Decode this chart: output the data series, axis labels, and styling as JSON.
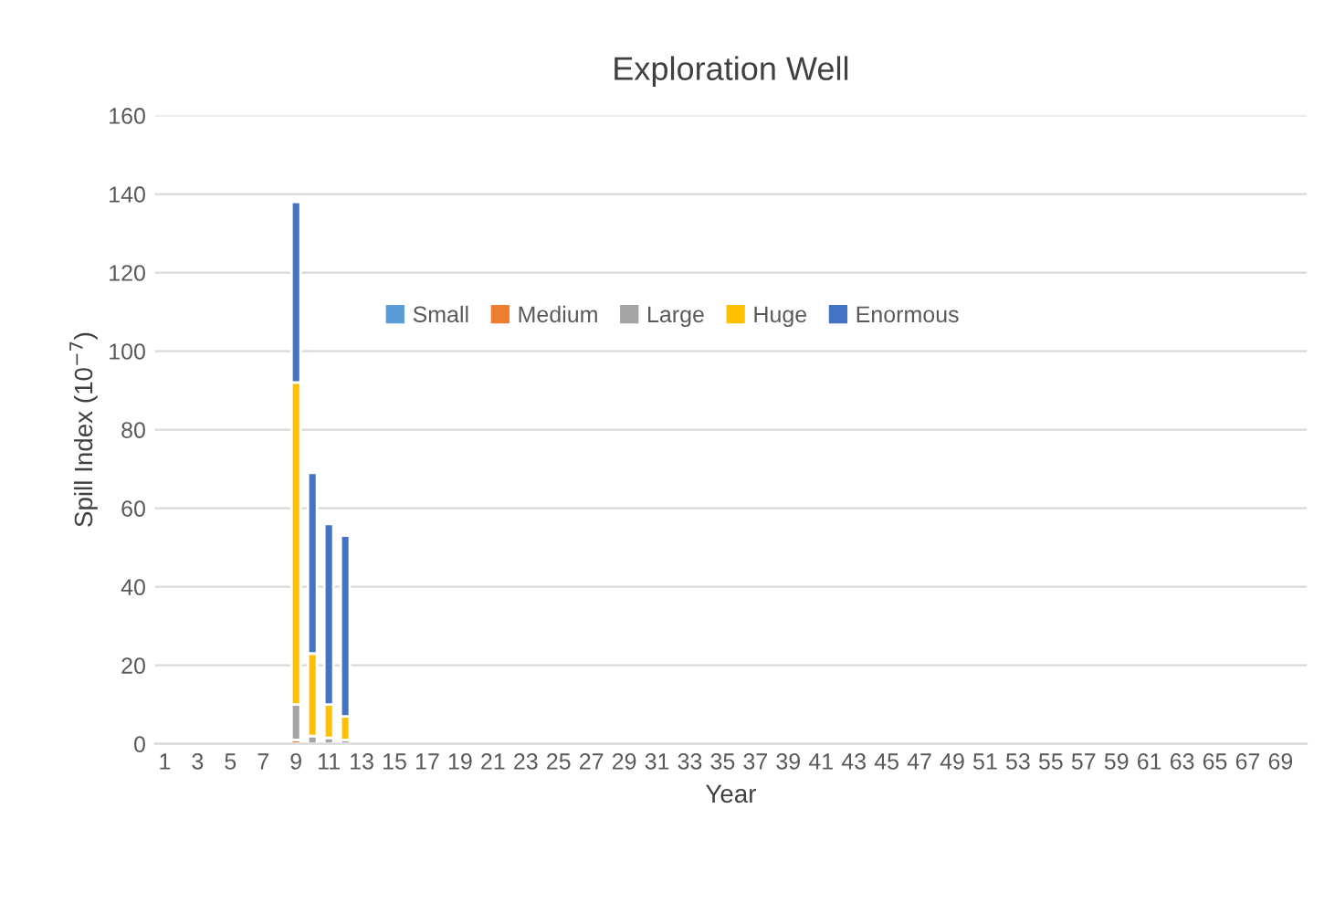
{
  "chart_data": {
    "type": "bar",
    "stacked": true,
    "title": "Exploration Well",
    "xlabel": "Year",
    "ylabel": "Spill Index (10$^{−7}$)",
    "categories": [
      "1",
      null,
      "3",
      null,
      "5",
      null,
      "7",
      null,
      "9",
      null,
      "11",
      null,
      "13",
      null,
      "15",
      null,
      "17",
      null,
      "19",
      null,
      "21",
      null,
      "23",
      null,
      "25",
      null,
      "27",
      null,
      "29",
      null,
      "31",
      null,
      "33",
      null,
      "35",
      null,
      "37",
      null,
      "39",
      null,
      "41",
      null,
      "43",
      null,
      "45",
      null,
      "47",
      null,
      "49",
      null,
      "51",
      null,
      "53",
      null,
      "55",
      null,
      "57",
      null,
      "59",
      null,
      "61",
      null,
      "63",
      null,
      "65",
      null,
      "67",
      null,
      "69",
      null
    ],
    "series": [
      {
        "name": "Small",
        "color": "#5b9bd5",
        "values": [
          null,
          null,
          null,
          null,
          null,
          null,
          null,
          null,
          0,
          0,
          0,
          0,
          null,
          null,
          null,
          null,
          null,
          null,
          null,
          null,
          null,
          null,
          null,
          null,
          null,
          null,
          null,
          null,
          null,
          null,
          null,
          null,
          null,
          null,
          null,
          null,
          null,
          null,
          null,
          null,
          null,
          null,
          null,
          null,
          null,
          null,
          null,
          null,
          null,
          null,
          null,
          null,
          null,
          null,
          null,
          null,
          null,
          null,
          null,
          null,
          null,
          null,
          null,
          null,
          null,
          null,
          null,
          null,
          null,
          null
        ]
      },
      {
        "name": "Medium",
        "color": "#ed7d31",
        "values": [
          null,
          null,
          null,
          null,
          null,
          null,
          null,
          null,
          1,
          0,
          0,
          0,
          null,
          null,
          null,
          null,
          null,
          null,
          null,
          null,
          null,
          null,
          null,
          null,
          null,
          null,
          null,
          null,
          null,
          null,
          null,
          null,
          null,
          null,
          null,
          null,
          null,
          null,
          null,
          null,
          null,
          null,
          null,
          null,
          null,
          null,
          null,
          null,
          null,
          null,
          null,
          null,
          null,
          null,
          null,
          null,
          null,
          null,
          null,
          null,
          null,
          null,
          null,
          null,
          null,
          null,
          null,
          null,
          null,
          null
        ]
      },
      {
        "name": "Large",
        "color": "#a5a5a5",
        "values": [
          null,
          null,
          null,
          null,
          null,
          null,
          null,
          null,
          9,
          2,
          1.5,
          1,
          null,
          null,
          null,
          null,
          null,
          null,
          null,
          null,
          null,
          null,
          null,
          null,
          null,
          null,
          null,
          null,
          null,
          null,
          null,
          null,
          null,
          null,
          null,
          null,
          null,
          null,
          null,
          null,
          null,
          null,
          null,
          null,
          null,
          null,
          null,
          null,
          null,
          null,
          null,
          null,
          null,
          null,
          null,
          null,
          null,
          null,
          null,
          null,
          null,
          null,
          null,
          null,
          null,
          null,
          null,
          null,
          null,
          null
        ]
      },
      {
        "name": "Huge",
        "color": "#ffc000",
        "values": [
          null,
          null,
          null,
          null,
          null,
          null,
          null,
          null,
          82,
          21,
          8.5,
          6,
          null,
          null,
          null,
          null,
          null,
          null,
          null,
          null,
          null,
          null,
          null,
          null,
          null,
          null,
          null,
          null,
          null,
          null,
          null,
          null,
          null,
          null,
          null,
          null,
          null,
          null,
          null,
          null,
          null,
          null,
          null,
          null,
          null,
          null,
          null,
          null,
          null,
          null,
          null,
          null,
          null,
          null,
          null,
          null,
          null,
          null,
          null,
          null,
          null,
          null,
          null,
          null,
          null,
          null,
          null,
          null,
          null,
          null
        ]
      },
      {
        "name": "Enormous",
        "color": "#4472c4",
        "values": [
          null,
          null,
          null,
          null,
          null,
          null,
          null,
          null,
          46,
          46,
          46,
          46,
          null,
          null,
          null,
          null,
          null,
          null,
          null,
          null,
          null,
          null,
          null,
          null,
          null,
          null,
          null,
          null,
          null,
          null,
          null,
          null,
          null,
          null,
          null,
          null,
          null,
          null,
          null,
          null,
          null,
          null,
          null,
          null,
          null,
          null,
          null,
          null,
          null,
          null,
          null,
          null,
          null,
          null,
          null,
          null,
          null,
          null,
          null,
          null,
          null,
          null,
          null,
          null,
          null,
          null,
          null,
          null,
          null,
          null
        ]
      }
    ],
    "ylim": [
      0,
      160
    ],
    "yticks": [
      0,
      20,
      40,
      60,
      80,
      100,
      120,
      140,
      160
    ],
    "grid": "y",
    "legend": "top"
  }
}
